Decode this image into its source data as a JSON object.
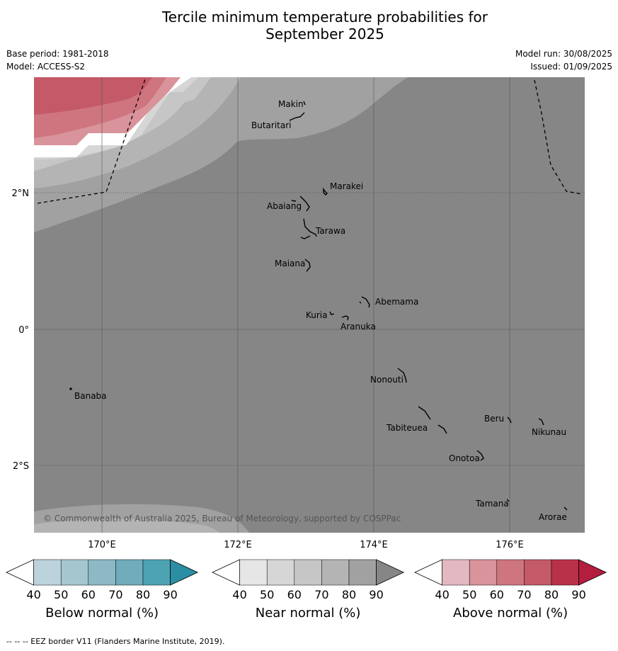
{
  "title_line1": "Tercile minimum temperature probabilities for",
  "title_line2": "September 2025",
  "base_period": "Base period: 1981-2018",
  "model": "Model: ACCESS-S2",
  "model_run": "Model run: 30/08/2025",
  "issued": "Issued: 01/09/2025",
  "copyright": "© Commonwealth of Australia 2025, Bureau of Meteorology, supported by COSPPac",
  "footnote": "--  --  -- EEZ border V11 (Flanders Marine Institute, 2019).",
  "lon_ticks": [
    "170°E",
    "172°E",
    "174°E",
    "176°E"
  ],
  "lat_ticks": [
    "2°N",
    "0°",
    "2°S"
  ],
  "islands": [
    {
      "name": "Makin"
    },
    {
      "name": "Butaritari"
    },
    {
      "name": "Marakei"
    },
    {
      "name": "Abaiang"
    },
    {
      "name": "Tarawa"
    },
    {
      "name": "Maiana"
    },
    {
      "name": "Abemama"
    },
    {
      "name": "Kuria"
    },
    {
      "name": "Aranuka"
    },
    {
      "name": "Nonouti"
    },
    {
      "name": "Banaba"
    },
    {
      "name": "Beru"
    },
    {
      "name": "Tabiteuea"
    },
    {
      "name": "Nikunau"
    },
    {
      "name": "Onotoa"
    },
    {
      "name": "Tamana"
    },
    {
      "name": "Arorae"
    }
  ],
  "colorbars": [
    {
      "title": "Below normal (%)",
      "ticks": [
        "40",
        "50",
        "60",
        "70",
        "80",
        "90"
      ],
      "colors": [
        "#ffffff",
        "#bcd3db",
        "#a5c6cf",
        "#8cb9c5",
        "#70acbb",
        "#4ea3b2",
        "#2b8ea2"
      ]
    },
    {
      "title": "Near normal (%)",
      "ticks": [
        "40",
        "50",
        "60",
        "70",
        "80",
        "90"
      ],
      "colors": [
        "#ffffff",
        "#e6e6e6",
        "#d6d6d6",
        "#c6c6c6",
        "#b4b4b4",
        "#a1a1a1",
        "#868686"
      ]
    },
    {
      "title": "Above normal (%)",
      "ticks": [
        "40",
        "50",
        "60",
        "70",
        "80",
        "90"
      ],
      "colors": [
        "#ffffff",
        "#e3b8c0",
        "#d9939b",
        "#ce7580",
        "#c45a67",
        "#b93149",
        "#b31d3e"
      ]
    }
  ],
  "fill_colors": {
    "near_90": "#868686",
    "near_80": "#a1a1a1",
    "near_70": "#b4b4b4",
    "near_60": "#c6c6c6",
    "near_50": "#d6d6d6",
    "near_40": "#e6e6e6",
    "above_60": "#d9939b",
    "above_70": "#ce7580",
    "above_80": "#c45a67"
  }
}
